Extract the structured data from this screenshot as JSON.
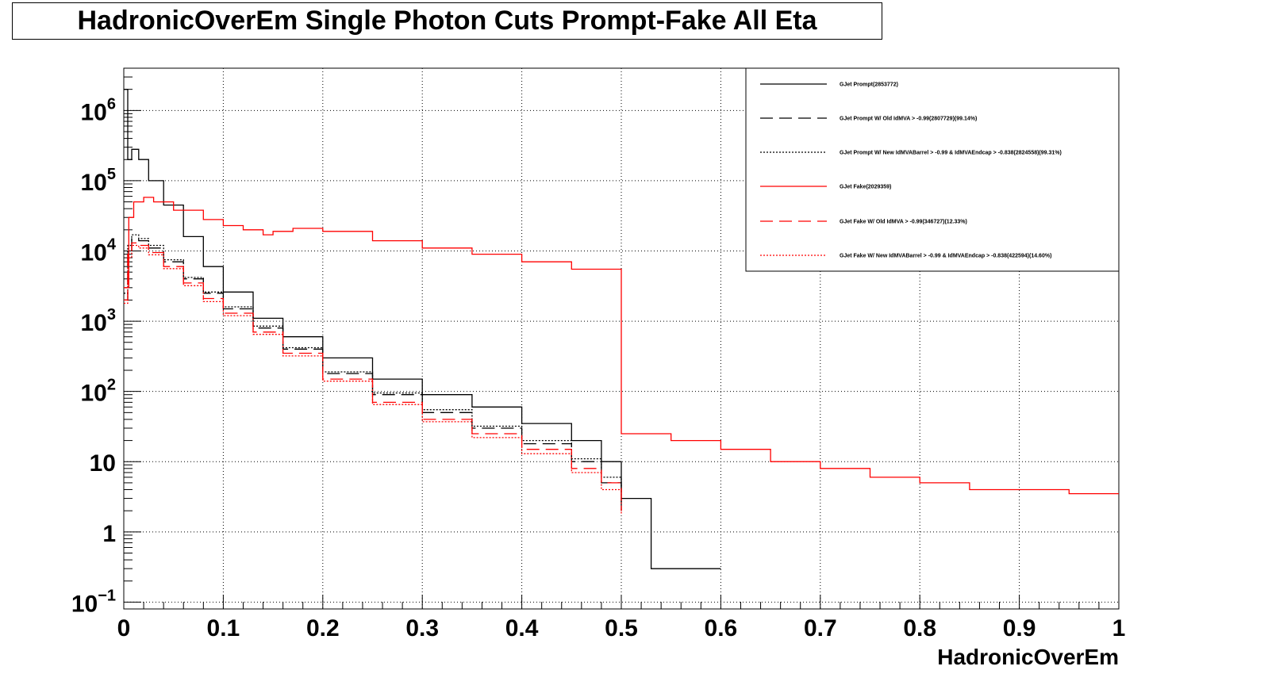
{
  "title": "HadronicOverEm Single Photon Cuts Prompt-Fake All Eta",
  "chart_data": {
    "type": "line",
    "title": "HadronicOverEm Single Photon Cuts Prompt-Fake All Eta",
    "xlabel": "HadronicOverEm",
    "ylabel": "",
    "xlim": [
      0,
      1
    ],
    "ylim": [
      0.08,
      4000000
    ],
    "y_scale": "log",
    "grid": true,
    "legend_position": "top-right",
    "x_ticks": [
      "0",
      "0.1",
      "0.2",
      "0.3",
      "0.4",
      "0.5",
      "0.6",
      "0.7",
      "0.8",
      "0.9",
      "1"
    ],
    "y_ticks": [
      {
        "base": "10",
        "exp": "−1"
      },
      {
        "base": "1",
        "exp": ""
      },
      {
        "base": "10",
        "exp": ""
      },
      {
        "base": "10",
        "exp": "2"
      },
      {
        "base": "10",
        "exp": "3"
      },
      {
        "base": "10",
        "exp": "4"
      },
      {
        "base": "10",
        "exp": "5"
      },
      {
        "base": "10",
        "exp": "6"
      }
    ],
    "series": [
      {
        "name": "GJet Prompt(2853772)",
        "color": "#000000",
        "dash": "solid",
        "x": [
          0.0,
          0.004,
          0.008,
          0.015,
          0.025,
          0.04,
          0.06,
          0.08,
          0.1,
          0.13,
          0.16,
          0.2,
          0.25,
          0.3,
          0.35,
          0.4,
          0.45,
          0.48,
          0.5,
          0.53,
          0.6
        ],
        "y": [
          2000000,
          200000,
          280000,
          200000,
          100000,
          45000,
          16000,
          6000,
          2600,
          1100,
          600,
          300,
          150,
          90,
          60,
          35,
          20,
          10,
          3,
          0.3,
          0.3
        ]
      },
      {
        "name": "GJet Prompt W/ Old IdMVA > -0.99(2807729)(99.14%)",
        "color": "#000000",
        "dash": "16,8",
        "x": [
          0.0,
          0.004,
          0.008,
          0.015,
          0.025,
          0.04,
          0.06,
          0.08,
          0.1,
          0.13,
          0.16,
          0.2,
          0.25,
          0.3,
          0.35,
          0.4,
          0.45,
          0.48,
          0.5
        ],
        "y": [
          2000,
          10000,
          15000,
          14000,
          11000,
          7000,
          4000,
          2500,
          1500,
          800,
          400,
          180,
          90,
          50,
          30,
          18,
          10,
          5,
          2
        ]
      },
      {
        "name": "GJet Prompt W/ New IdMVABarrel > -0.99 & IdMVAEndcap > -0.838(2824558)(99.31%)",
        "color": "#000000",
        "dash": "2,2",
        "x": [
          0.0,
          0.004,
          0.008,
          0.015,
          0.025,
          0.04,
          0.06,
          0.08,
          0.1,
          0.13,
          0.16,
          0.2,
          0.25,
          0.3,
          0.35,
          0.4,
          0.45,
          0.48,
          0.5
        ],
        "y": [
          2500,
          12000,
          17000,
          15000,
          12000,
          7500,
          4200,
          2600,
          1600,
          850,
          420,
          190,
          95,
          55,
          32,
          20,
          11,
          6,
          2.5
        ]
      },
      {
        "name": "GJet Fake(2029359)",
        "color": "#ff0000",
        "dash": "solid",
        "x": [
          0.0,
          0.005,
          0.01,
          0.02,
          0.03,
          0.05,
          0.08,
          0.1,
          0.12,
          0.14,
          0.15,
          0.17,
          0.2,
          0.25,
          0.3,
          0.35,
          0.4,
          0.45,
          0.5,
          0.5,
          0.55,
          0.6,
          0.65,
          0.7,
          0.75,
          0.8,
          0.85,
          0.9,
          0.95,
          1.0
        ],
        "y": [
          3000,
          30000,
          50000,
          58000,
          50000,
          38000,
          28000,
          23000,
          20000,
          17000,
          19000,
          21000,
          19000,
          14000,
          11000,
          9000,
          7000,
          5500,
          4200,
          25,
          20,
          15,
          10,
          8,
          6,
          5,
          4,
          4,
          3.5,
          3.5
        ]
      },
      {
        "name": "GJet Fake W/ Old IdMVA > -0.99(346727)(12.33%)",
        "color": "#ff0000",
        "dash": "16,8",
        "x": [
          0.0,
          0.004,
          0.008,
          0.015,
          0.025,
          0.04,
          0.06,
          0.08,
          0.1,
          0.13,
          0.16,
          0.2,
          0.25,
          0.3,
          0.35,
          0.4,
          0.45,
          0.48,
          0.5
        ],
        "y": [
          2000,
          9000,
          13000,
          12000,
          9500,
          6000,
          3500,
          2100,
          1300,
          700,
          350,
          150,
          70,
          40,
          25,
          15,
          8,
          5,
          2
        ]
      },
      {
        "name": "GJet Fake W/ New IdMVABarrel > -0.99 & IdMVAEndcap > -0.838(422594)(14.60%)",
        "color": "#ff0000",
        "dash": "2,2",
        "x": [
          0.0,
          0.004,
          0.008,
          0.015,
          0.025,
          0.04,
          0.06,
          0.08,
          0.1,
          0.13,
          0.16,
          0.2,
          0.25,
          0.3,
          0.35,
          0.4,
          0.45,
          0.48,
          0.5
        ],
        "y": [
          1800,
          8000,
          12000,
          11000,
          8800,
          5600,
          3200,
          1900,
          1200,
          650,
          320,
          140,
          65,
          37,
          22,
          13,
          7,
          4,
          1.8
        ]
      }
    ]
  }
}
